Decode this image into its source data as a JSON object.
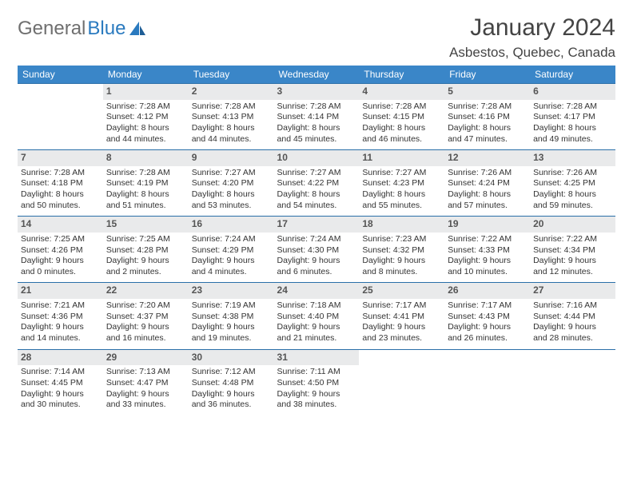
{
  "brand": {
    "part1": "General",
    "part2": "Blue"
  },
  "title": "January 2024",
  "location": "Asbestos, Quebec, Canada",
  "colors": {
    "header_bg": "#3a86c8",
    "header_text": "#ffffff",
    "daynum_bg": "#e9eaeb",
    "body_text": "#333333",
    "row_border": "#2a6fa8",
    "logo_gray": "#6f6f6f",
    "logo_blue": "#2a7abf"
  },
  "fonts": {
    "title_size_pt": 22,
    "location_size_pt": 13,
    "header_size_pt": 9,
    "cell_size_pt": 8
  },
  "weekdays": [
    "Sunday",
    "Monday",
    "Tuesday",
    "Wednesday",
    "Thursday",
    "Friday",
    "Saturday"
  ],
  "weeks": [
    [
      {
        "n": "",
        "sunrise": "",
        "sunset": "",
        "day1": "",
        "day2": ""
      },
      {
        "n": "1",
        "sunrise": "Sunrise: 7:28 AM",
        "sunset": "Sunset: 4:12 PM",
        "day1": "Daylight: 8 hours",
        "day2": "and 44 minutes."
      },
      {
        "n": "2",
        "sunrise": "Sunrise: 7:28 AM",
        "sunset": "Sunset: 4:13 PM",
        "day1": "Daylight: 8 hours",
        "day2": "and 44 minutes."
      },
      {
        "n": "3",
        "sunrise": "Sunrise: 7:28 AM",
        "sunset": "Sunset: 4:14 PM",
        "day1": "Daylight: 8 hours",
        "day2": "and 45 minutes."
      },
      {
        "n": "4",
        "sunrise": "Sunrise: 7:28 AM",
        "sunset": "Sunset: 4:15 PM",
        "day1": "Daylight: 8 hours",
        "day2": "and 46 minutes."
      },
      {
        "n": "5",
        "sunrise": "Sunrise: 7:28 AM",
        "sunset": "Sunset: 4:16 PM",
        "day1": "Daylight: 8 hours",
        "day2": "and 47 minutes."
      },
      {
        "n": "6",
        "sunrise": "Sunrise: 7:28 AM",
        "sunset": "Sunset: 4:17 PM",
        "day1": "Daylight: 8 hours",
        "day2": "and 49 minutes."
      }
    ],
    [
      {
        "n": "7",
        "sunrise": "Sunrise: 7:28 AM",
        "sunset": "Sunset: 4:18 PM",
        "day1": "Daylight: 8 hours",
        "day2": "and 50 minutes."
      },
      {
        "n": "8",
        "sunrise": "Sunrise: 7:28 AM",
        "sunset": "Sunset: 4:19 PM",
        "day1": "Daylight: 8 hours",
        "day2": "and 51 minutes."
      },
      {
        "n": "9",
        "sunrise": "Sunrise: 7:27 AM",
        "sunset": "Sunset: 4:20 PM",
        "day1": "Daylight: 8 hours",
        "day2": "and 53 minutes."
      },
      {
        "n": "10",
        "sunrise": "Sunrise: 7:27 AM",
        "sunset": "Sunset: 4:22 PM",
        "day1": "Daylight: 8 hours",
        "day2": "and 54 minutes."
      },
      {
        "n": "11",
        "sunrise": "Sunrise: 7:27 AM",
        "sunset": "Sunset: 4:23 PM",
        "day1": "Daylight: 8 hours",
        "day2": "and 55 minutes."
      },
      {
        "n": "12",
        "sunrise": "Sunrise: 7:26 AM",
        "sunset": "Sunset: 4:24 PM",
        "day1": "Daylight: 8 hours",
        "day2": "and 57 minutes."
      },
      {
        "n": "13",
        "sunrise": "Sunrise: 7:26 AM",
        "sunset": "Sunset: 4:25 PM",
        "day1": "Daylight: 8 hours",
        "day2": "and 59 minutes."
      }
    ],
    [
      {
        "n": "14",
        "sunrise": "Sunrise: 7:25 AM",
        "sunset": "Sunset: 4:26 PM",
        "day1": "Daylight: 9 hours",
        "day2": "and 0 minutes."
      },
      {
        "n": "15",
        "sunrise": "Sunrise: 7:25 AM",
        "sunset": "Sunset: 4:28 PM",
        "day1": "Daylight: 9 hours",
        "day2": "and 2 minutes."
      },
      {
        "n": "16",
        "sunrise": "Sunrise: 7:24 AM",
        "sunset": "Sunset: 4:29 PM",
        "day1": "Daylight: 9 hours",
        "day2": "and 4 minutes."
      },
      {
        "n": "17",
        "sunrise": "Sunrise: 7:24 AM",
        "sunset": "Sunset: 4:30 PM",
        "day1": "Daylight: 9 hours",
        "day2": "and 6 minutes."
      },
      {
        "n": "18",
        "sunrise": "Sunrise: 7:23 AM",
        "sunset": "Sunset: 4:32 PM",
        "day1": "Daylight: 9 hours",
        "day2": "and 8 minutes."
      },
      {
        "n": "19",
        "sunrise": "Sunrise: 7:22 AM",
        "sunset": "Sunset: 4:33 PM",
        "day1": "Daylight: 9 hours",
        "day2": "and 10 minutes."
      },
      {
        "n": "20",
        "sunrise": "Sunrise: 7:22 AM",
        "sunset": "Sunset: 4:34 PM",
        "day1": "Daylight: 9 hours",
        "day2": "and 12 minutes."
      }
    ],
    [
      {
        "n": "21",
        "sunrise": "Sunrise: 7:21 AM",
        "sunset": "Sunset: 4:36 PM",
        "day1": "Daylight: 9 hours",
        "day2": "and 14 minutes."
      },
      {
        "n": "22",
        "sunrise": "Sunrise: 7:20 AM",
        "sunset": "Sunset: 4:37 PM",
        "day1": "Daylight: 9 hours",
        "day2": "and 16 minutes."
      },
      {
        "n": "23",
        "sunrise": "Sunrise: 7:19 AM",
        "sunset": "Sunset: 4:38 PM",
        "day1": "Daylight: 9 hours",
        "day2": "and 19 minutes."
      },
      {
        "n": "24",
        "sunrise": "Sunrise: 7:18 AM",
        "sunset": "Sunset: 4:40 PM",
        "day1": "Daylight: 9 hours",
        "day2": "and 21 minutes."
      },
      {
        "n": "25",
        "sunrise": "Sunrise: 7:17 AM",
        "sunset": "Sunset: 4:41 PM",
        "day1": "Daylight: 9 hours",
        "day2": "and 23 minutes."
      },
      {
        "n": "26",
        "sunrise": "Sunrise: 7:17 AM",
        "sunset": "Sunset: 4:43 PM",
        "day1": "Daylight: 9 hours",
        "day2": "and 26 minutes."
      },
      {
        "n": "27",
        "sunrise": "Sunrise: 7:16 AM",
        "sunset": "Sunset: 4:44 PM",
        "day1": "Daylight: 9 hours",
        "day2": "and 28 minutes."
      }
    ],
    [
      {
        "n": "28",
        "sunrise": "Sunrise: 7:14 AM",
        "sunset": "Sunset: 4:45 PM",
        "day1": "Daylight: 9 hours",
        "day2": "and 30 minutes."
      },
      {
        "n": "29",
        "sunrise": "Sunrise: 7:13 AM",
        "sunset": "Sunset: 4:47 PM",
        "day1": "Daylight: 9 hours",
        "day2": "and 33 minutes."
      },
      {
        "n": "30",
        "sunrise": "Sunrise: 7:12 AM",
        "sunset": "Sunset: 4:48 PM",
        "day1": "Daylight: 9 hours",
        "day2": "and 36 minutes."
      },
      {
        "n": "31",
        "sunrise": "Sunrise: 7:11 AM",
        "sunset": "Sunset: 4:50 PM",
        "day1": "Daylight: 9 hours",
        "day2": "and 38 minutes."
      },
      {
        "n": "",
        "sunrise": "",
        "sunset": "",
        "day1": "",
        "day2": ""
      },
      {
        "n": "",
        "sunrise": "",
        "sunset": "",
        "day1": "",
        "day2": ""
      },
      {
        "n": "",
        "sunrise": "",
        "sunset": "",
        "day1": "",
        "day2": ""
      }
    ]
  ]
}
